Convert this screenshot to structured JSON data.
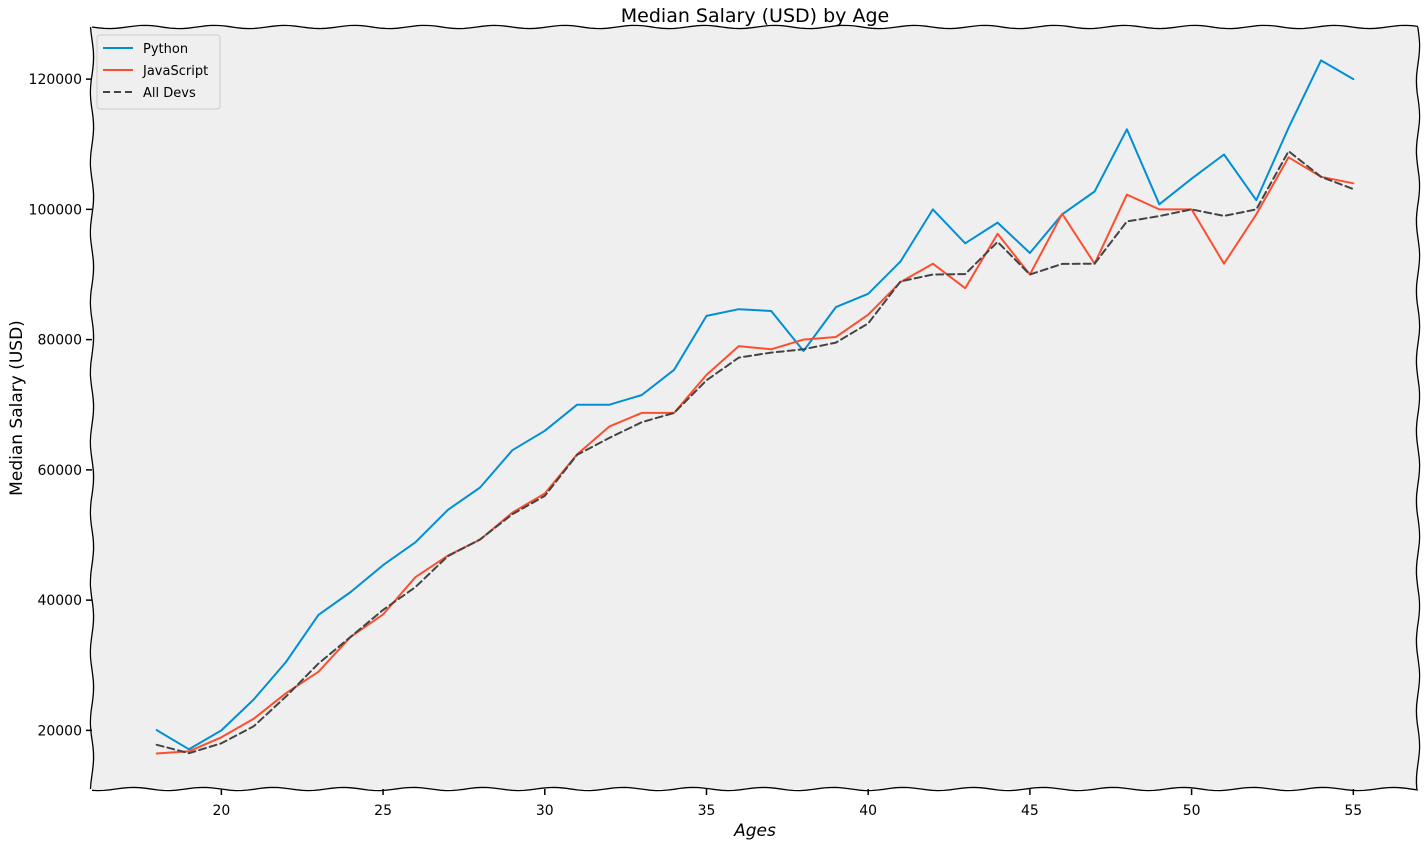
{
  "chart_data": {
    "type": "line",
    "title": "Median Salary (USD) by Age",
    "xlabel": "Ages",
    "ylabel": "Median Salary (USD)",
    "xlim": [
      16,
      57
    ],
    "ylim": [
      11000,
      128000
    ],
    "x_ticks": [
      20,
      25,
      30,
      35,
      40,
      45,
      50,
      55
    ],
    "y_ticks": [
      20000,
      40000,
      60000,
      80000,
      100000,
      120000
    ],
    "grid": false,
    "legend_position": "top-left",
    "background": "#efefef",
    "x": [
      18,
      19,
      20,
      21,
      22,
      23,
      24,
      25,
      26,
      27,
      28,
      29,
      30,
      31,
      32,
      33,
      34,
      35,
      36,
      37,
      38,
      39,
      40,
      41,
      42,
      43,
      44,
      45,
      46,
      47,
      48,
      49,
      50,
      51,
      52,
      53,
      54,
      55
    ],
    "series": [
      {
        "name": "Python",
        "color": "#008fd5",
        "style": "solid",
        "values": [
          20046,
          17100,
          20000,
          24744,
          30500,
          37732,
          41247,
          45372,
          48876,
          53850,
          57287,
          63016,
          65998,
          70003,
          70000,
          71496,
          75370,
          83640,
          84666,
          84392,
          78254,
          85000,
          87038,
          91991,
          100000,
          94796,
          97962,
          93302,
          99240,
          102736,
          112285,
          100771,
          104708,
          108423,
          101407,
          112542,
          122870,
          120000
        ]
      },
      {
        "name": "JavaScript",
        "color": "#fc4f30",
        "style": "solid",
        "values": [
          16446,
          16791,
          18942,
          21780,
          25704,
          29000,
          34372,
          37810,
          43515,
          46823,
          49293,
          53437,
          56373,
          62375,
          66674,
          68745,
          68746,
          74583,
          79000,
          78508,
          79996,
          80403,
          83820,
          88833,
          91660,
          87892,
          96243,
          90000,
          99313,
          91660,
          102264,
          100000,
          100000,
          91660,
          99240,
          108000,
          105000,
          104000
        ]
      },
      {
        "name": "All Devs",
        "color": "#444444",
        "style": "dashed",
        "values": [
          17784,
          16500,
          18012,
          20628,
          25206,
          30252,
          34368,
          38496,
          42000,
          46752,
          49320,
          53200,
          56000,
          62316,
          64928,
          67317,
          68748,
          73752,
          77232,
          78000,
          78508,
          79536,
          82488,
          88935,
          90000,
          90056,
          95000,
          90000,
          91633,
          91660,
          98150,
          98964,
          100000,
          98988,
          100000,
          108923,
          105000,
          103117
        ]
      }
    ]
  }
}
